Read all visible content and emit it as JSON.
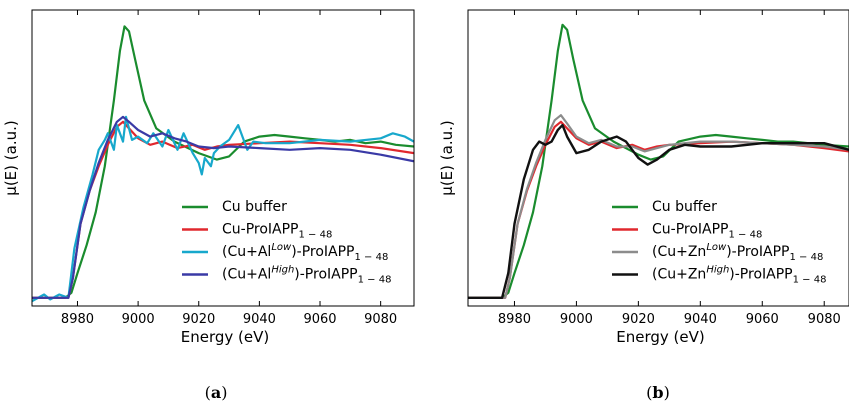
{
  "chart_data": [
    {
      "type": "line",
      "panel_label": "(a)",
      "xlabel": "Energy (eV)",
      "ylabel": "μ(E) (a.u.)",
      "xlim": [
        8965,
        9091
      ],
      "ylim": [
        -0.05,
        1.75
      ],
      "xticks": [
        8980,
        9000,
        9020,
        9040,
        9060,
        9080
      ],
      "show_yticks": false,
      "grid": false,
      "legend_position": "lower-right",
      "series": [
        {
          "name": "Cu buffer",
          "legend_parts": [
            "Cu buffer"
          ],
          "color": "#1a8c2e",
          "x": [
            8965,
            8976,
            8978,
            8980,
            8983,
            8986,
            8989,
            8992,
            8994,
            8995.5,
            8997,
            8999,
            9002,
            9006,
            9012,
            9020,
            9026,
            9030,
            9035,
            9040,
            9045,
            9050,
            9055,
            9060,
            9065,
            9070,
            9075,
            9080,
            9085,
            9091
          ],
          "y": [
            0.0,
            0.0,
            0.03,
            0.15,
            0.32,
            0.52,
            0.8,
            1.2,
            1.5,
            1.65,
            1.62,
            1.45,
            1.2,
            1.03,
            0.95,
            0.88,
            0.84,
            0.86,
            0.95,
            0.98,
            0.99,
            0.98,
            0.97,
            0.96,
            0.95,
            0.96,
            0.94,
            0.95,
            0.93,
            0.92
          ]
        },
        {
          "name": "Cu-ProIAPP1−48",
          "legend_parts": [
            "Cu-ProIAPP",
            "1 − 48"
          ],
          "color": "#e0282e",
          "x": [
            8965,
            8977,
            8978.5,
            8981,
            8984,
            8987,
            8990,
            8993,
            8995,
            8997,
            9000,
            9004,
            9008,
            9013,
            9018,
            9022,
            9026,
            9030,
            9040,
            9050,
            9060,
            9070,
            9080,
            9091
          ],
          "y": [
            0.0,
            0.0,
            0.12,
            0.45,
            0.65,
            0.8,
            0.93,
            1.04,
            1.07,
            1.03,
            0.97,
            0.93,
            0.95,
            0.91,
            0.93,
            0.9,
            0.92,
            0.93,
            0.94,
            0.95,
            0.94,
            0.93,
            0.91,
            0.88
          ]
        },
        {
          "name": "(Cu+Al Low)-ProIAPP1−48",
          "legend_parts": [
            "(Cu+Al",
            "Low",
            ")-ProIAPP",
            "1 − 48"
          ],
          "color": "#17a8cc",
          "x": [
            8965,
            8969,
            8971,
            8974,
            8977,
            8979,
            8982,
            8985,
            8987,
            8989,
            8990,
            8992,
            8993,
            8995,
            8996,
            8998,
            9000,
            9003,
            9005,
            9008,
            9010,
            9013,
            9015,
            9018,
            9020,
            9021,
            9022,
            9024,
            9025,
            9027,
            9030,
            9033,
            9034,
            9036,
            9038,
            9042,
            9050,
            9060,
            9070,
            9080,
            9084,
            9088,
            9091
          ],
          "y": [
            -0.02,
            0.02,
            -0.01,
            0.02,
            0.0,
            0.3,
            0.55,
            0.75,
            0.9,
            0.96,
            1.0,
            0.9,
            1.05,
            0.95,
            1.1,
            0.96,
            0.98,
            0.94,
            1.0,
            0.92,
            1.02,
            0.9,
            1.0,
            0.88,
            0.82,
            0.75,
            0.85,
            0.8,
            0.88,
            0.92,
            0.96,
            1.05,
            1.0,
            0.9,
            0.95,
            0.94,
            0.94,
            0.96,
            0.95,
            0.97,
            1.0,
            0.98,
            0.95
          ]
        },
        {
          "name": "(Cu+Al High)-ProIAPP1−48",
          "legend_parts": [
            "(Cu+Al",
            "High",
            ")-ProIAPP",
            "1 − 48"
          ],
          "color": "#3a3aa6",
          "x": [
            8965,
            8977,
            8978.5,
            8981,
            8984,
            8987,
            8990,
            8993,
            8995,
            8997,
            9000,
            9004,
            9008,
            9012,
            9016,
            9020,
            9025,
            9030,
            9040,
            9050,
            9060,
            9070,
            9080,
            9091
          ],
          "y": [
            0.0,
            0.0,
            0.12,
            0.45,
            0.65,
            0.82,
            0.96,
            1.07,
            1.1,
            1.07,
            1.02,
            0.98,
            1.0,
            0.97,
            0.95,
            0.92,
            0.91,
            0.92,
            0.91,
            0.9,
            0.91,
            0.9,
            0.87,
            0.83
          ]
        }
      ]
    },
    {
      "type": "line",
      "panel_label": "(b)",
      "xlabel": "Energy (eV)",
      "ylabel": "μ(E) (a.u.)",
      "xlim": [
        8965,
        9088
      ],
      "ylim": [
        -0.05,
        1.75
      ],
      "xticks": [
        8980,
        9000,
        9020,
        9040,
        9060,
        9080
      ],
      "show_yticks": false,
      "grid": false,
      "legend_position": "lower-right",
      "series": [
        {
          "name": "Cu buffer",
          "legend_parts": [
            "Cu buffer"
          ],
          "color": "#1a8c2e",
          "x": [
            8965,
            8976,
            8978,
            8980,
            8983,
            8986,
            8989,
            8992,
            8994,
            8995.5,
            8997,
            8999,
            9002,
            9006,
            9012,
            9020,
            9024,
            9028,
            9033,
            9040,
            9045,
            9050,
            9055,
            9060,
            9065,
            9070,
            9075,
            9080,
            9088
          ],
          "y": [
            0.0,
            0.0,
            0.03,
            0.15,
            0.32,
            0.52,
            0.8,
            1.2,
            1.5,
            1.66,
            1.63,
            1.45,
            1.2,
            1.03,
            0.95,
            0.87,
            0.84,
            0.86,
            0.95,
            0.98,
            0.99,
            0.98,
            0.97,
            0.96,
            0.95,
            0.95,
            0.94,
            0.93,
            0.92
          ]
        },
        {
          "name": "Cu-ProIAPP1−48",
          "legend_parts": [
            "Cu-ProIAPP",
            "1 − 48"
          ],
          "color": "#e0282e",
          "x": [
            8965,
            8977,
            8978.5,
            8981,
            8984,
            8987,
            8990,
            8993,
            8995,
            8997,
            9000,
            9004,
            9008,
            9013,
            9018,
            9022,
            9026,
            9030,
            9040,
            9050,
            9060,
            9070,
            9080,
            9088
          ],
          "y": [
            0.0,
            0.0,
            0.12,
            0.45,
            0.65,
            0.8,
            0.93,
            1.04,
            1.07,
            1.03,
            0.97,
            0.93,
            0.95,
            0.91,
            0.93,
            0.9,
            0.92,
            0.93,
            0.94,
            0.95,
            0.94,
            0.93,
            0.91,
            0.89
          ]
        },
        {
          "name": "(Cu+Zn Low)-ProIAPP1−48",
          "legend_parts": [
            "(Cu+Zn",
            "Low",
            ")-ProIAPP",
            "1 − 48"
          ],
          "color": "#8c8c8c",
          "x": [
            8965,
            8977,
            8978.5,
            8981,
            8984,
            8987,
            8990,
            8993,
            8995,
            8997,
            9000,
            9004,
            9008,
            9013,
            9018,
            9022,
            9026,
            9030,
            9040,
            9050,
            9060,
            9070,
            9080,
            9088
          ],
          "y": [
            0.0,
            0.0,
            0.12,
            0.45,
            0.66,
            0.82,
            0.96,
            1.08,
            1.11,
            1.06,
            0.98,
            0.94,
            0.96,
            0.92,
            0.92,
            0.89,
            0.91,
            0.93,
            0.95,
            0.95,
            0.94,
            0.93,
            0.92,
            0.9
          ]
        },
        {
          "name": "(Cu+Zn High)-ProIAPP1−48",
          "legend_parts": [
            "(Cu+Zn",
            "High",
            ")-ProIAPP",
            "1 − 48"
          ],
          "color": "#111111",
          "x": [
            8965,
            8976,
            8978,
            8980,
            8983,
            8986,
            8988,
            8990,
            8992,
            8994,
            8995.5,
            8997,
            9000,
            9004,
            9008,
            9013,
            9016,
            9020,
            9023,
            9026,
            9030,
            9035,
            9040,
            9050,
            9060,
            9070,
            9080,
            9088
          ],
          "y": [
            0.0,
            0.0,
            0.15,
            0.45,
            0.72,
            0.9,
            0.95,
            0.93,
            0.95,
            1.02,
            1.05,
            0.98,
            0.88,
            0.9,
            0.95,
            0.98,
            0.95,
            0.85,
            0.81,
            0.84,
            0.9,
            0.93,
            0.92,
            0.92,
            0.94,
            0.94,
            0.94,
            0.9
          ]
        }
      ]
    }
  ]
}
